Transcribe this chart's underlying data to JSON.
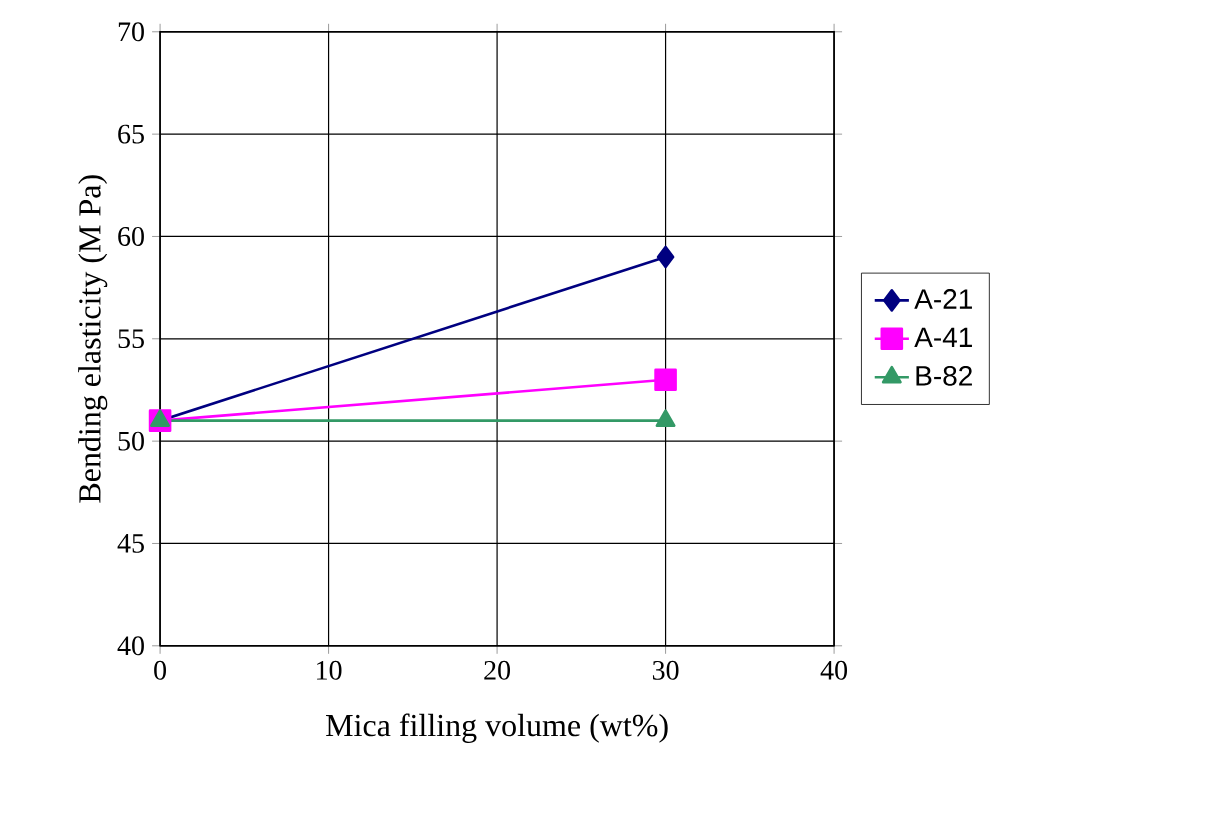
{
  "chart_data": {
    "type": "line",
    "xlabel": "Mica filling volume (wt%)",
    "ylabel": "Bending elasticity (M Pa)",
    "x": [
      0,
      30
    ],
    "series": [
      {
        "name": "A-21",
        "color": "#000080",
        "marker": "diamond",
        "values": [
          51,
          59
        ]
      },
      {
        "name": "A-41",
        "color": "#ff00ff",
        "marker": "square",
        "values": [
          51,
          53
        ]
      },
      {
        "name": "B-82",
        "color": "#339966",
        "marker": "triangle",
        "values": [
          51,
          51
        ]
      }
    ],
    "xlim": [
      0,
      40
    ],
    "xticks": [
      0,
      10,
      20,
      30,
      40
    ],
    "ylim": [
      40,
      70
    ],
    "yticks": [
      40,
      45,
      50,
      55,
      60,
      65,
      70
    ],
    "grid": true,
    "legend": "right",
    "line_style": "solid"
  }
}
